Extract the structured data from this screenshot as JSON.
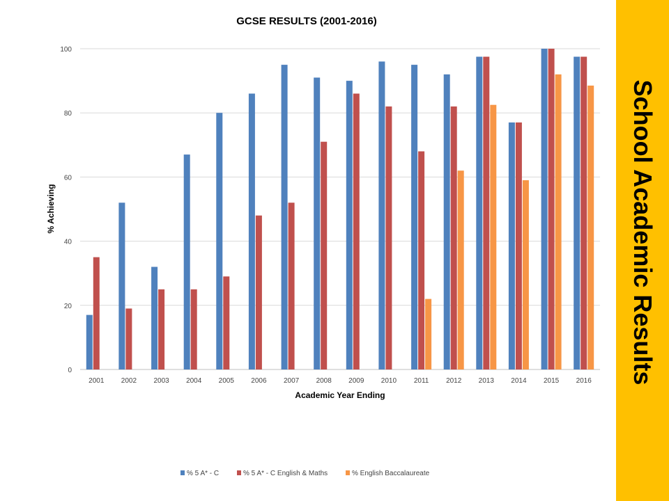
{
  "slide": {
    "banner_text": "School Academic Results",
    "banner_color": "#ffc000"
  },
  "chart_data": {
    "type": "bar",
    "title": "GCSE RESULTS (2001-2016)",
    "xlabel": "Academic Year Ending",
    "ylabel": "% Achieving",
    "ylim": [
      0,
      100
    ],
    "yticks": [
      0,
      20,
      40,
      60,
      80,
      100
    ],
    "grid": true,
    "legend_position": "bottom",
    "categories": [
      "2001",
      "2002",
      "2003",
      "2004",
      "2005",
      "2006",
      "2007",
      "2008",
      "2009",
      "2010",
      "2011",
      "2012",
      "2013",
      "2014",
      "2015",
      "2016"
    ],
    "series": [
      {
        "name": "% 5 A* - C",
        "color": "#4f81bd",
        "values": [
          17,
          52,
          32,
          67,
          80,
          86,
          95,
          91,
          90,
          96,
          95,
          92,
          97.5,
          77,
          100,
          97.5
        ]
      },
      {
        "name": "% 5 A* - C English & Maths",
        "color": "#c0504d",
        "values": [
          35,
          19,
          25,
          25,
          29,
          48,
          52,
          71,
          86,
          82,
          68,
          82,
          97.5,
          77,
          100,
          97.5
        ]
      },
      {
        "name": "% English Baccalaureate",
        "color": "#f79646",
        "values": [
          null,
          null,
          null,
          null,
          null,
          null,
          null,
          null,
          null,
          null,
          22,
          62,
          82.5,
          59,
          92,
          88.5
        ]
      }
    ]
  }
}
